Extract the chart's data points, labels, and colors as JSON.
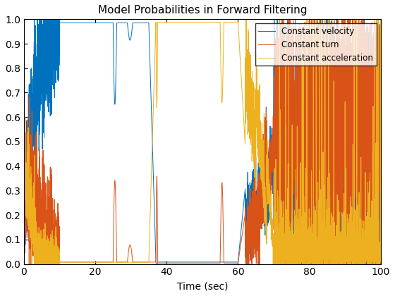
{
  "title": "Model Probabilities in Forward Filtering",
  "xlabel": "Time (sec)",
  "ylabel": "",
  "xlim": [
    0,
    100
  ],
  "ylim": [
    0,
    1
  ],
  "legend": [
    "Constant velocity",
    "Constant turn",
    "Constant acceleration"
  ],
  "line_colors": [
    "#0072BD",
    "#D95319",
    "#EDB120"
  ],
  "line_width": 0.7,
  "figsize": [
    5.6,
    4.2
  ],
  "dpi": 100,
  "title_fontsize": 11,
  "label_fontsize": 10,
  "xticks": [
    0,
    20,
    40,
    60,
    80,
    100
  ],
  "yticks": [
    0,
    0.1,
    0.2,
    0.3,
    0.4,
    0.5,
    0.6,
    0.7,
    0.8,
    0.9,
    1.0
  ]
}
